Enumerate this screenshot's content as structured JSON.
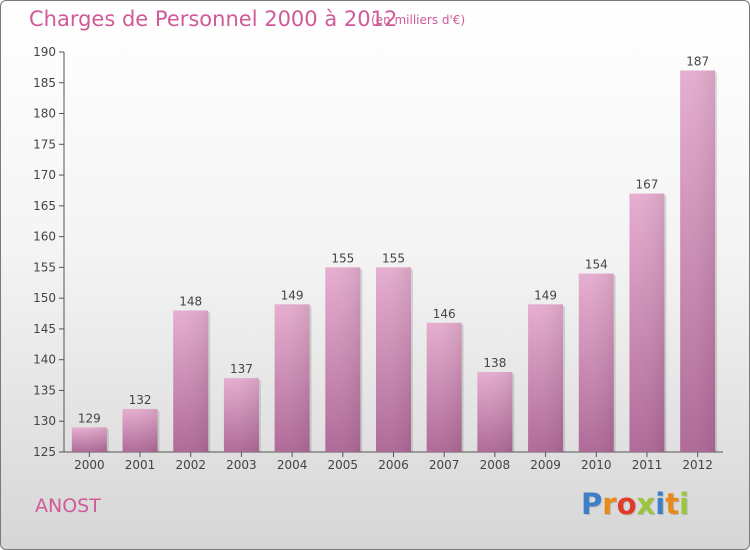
{
  "header": {
    "title": "Charges de Personnel 2000 à 2012",
    "subtitle": "(en milliers d'€)"
  },
  "footer": {
    "commune": "ANOST",
    "logo_text": "Proxiti",
    "logo_colors": [
      "#3c7ec8",
      "#e8891c",
      "#e03a2c",
      "#9bc53d",
      "#3c7ec8",
      "#e8891c",
      "#9bc53d"
    ]
  },
  "colors": {
    "bar_light": "#e6aed0",
    "bar_dark": "#b06a98",
    "text": "#444444",
    "accent": "#d05a98"
  },
  "chart_data": {
    "type": "bar",
    "categories": [
      "2000",
      "2001",
      "2002",
      "2003",
      "2004",
      "2005",
      "2006",
      "2007",
      "2008",
      "2009",
      "2010",
      "2011",
      "2012"
    ],
    "values": [
      129,
      132,
      148,
      137,
      149,
      155,
      155,
      146,
      138,
      149,
      154,
      167,
      187
    ],
    "title": "Charges de Personnel 2000 à 2012",
    "xlabel": "",
    "ylabel": "",
    "ylim": [
      125,
      190
    ],
    "yticks": [
      125,
      130,
      135,
      140,
      145,
      150,
      155,
      160,
      165,
      170,
      175,
      180,
      185,
      190
    ],
    "grid": false,
    "data_labels": true
  }
}
